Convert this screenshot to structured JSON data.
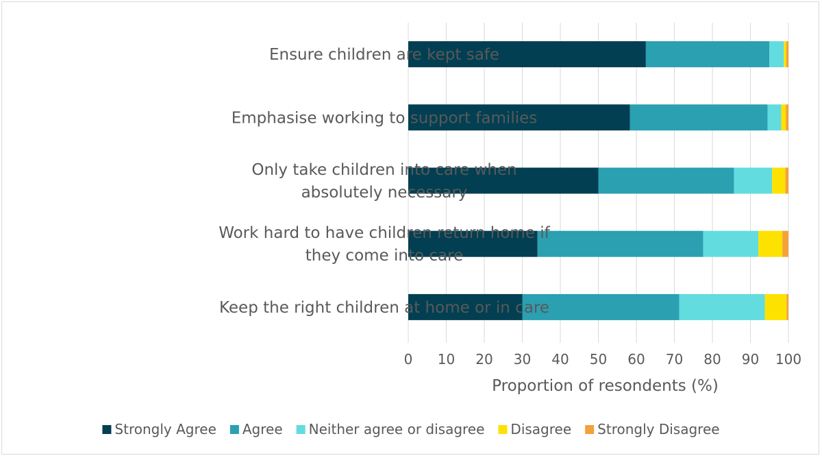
{
  "chart_data": {
    "type": "bar",
    "orientation": "horizontal",
    "stacked": true,
    "categories": [
      [
        "Ensure children are kept safe"
      ],
      [
        "Emphasise working to support families"
      ],
      [
        "Only take children into care when",
        "absolutely necessary"
      ],
      [
        "Work hard to have children return home if",
        "they come into care"
      ],
      [
        "Keep the right children at home or in care"
      ]
    ],
    "series": [
      {
        "name": "Strongly Agree",
        "color": "#023f52",
        "values": [
          62.5,
          58.3,
          50.0,
          34.0,
          30.0
        ]
      },
      {
        "name": "Agree",
        "color": "#2aa0b1",
        "values": [
          32.5,
          36.2,
          35.7,
          43.6,
          41.3
        ]
      },
      {
        "name": "Neither agree or disagree",
        "color": "#62dcdf",
        "values": [
          3.8,
          3.6,
          10.0,
          14.5,
          22.5
        ]
      },
      {
        "name": "Disagree",
        "color": "#fde200",
        "values": [
          0.6,
          1.2,
          3.5,
          6.3,
          5.7
        ]
      },
      {
        "name": "Strongly Disagree",
        "color": "#f4a13a",
        "values": [
          0.6,
          0.7,
          0.8,
          1.6,
          0.5
        ]
      }
    ],
    "xlabel": "Proportion of resondents (%)",
    "ylabel": "",
    "xlim": [
      0,
      100
    ],
    "xticks": [
      "0",
      "10",
      "20",
      "30",
      "40",
      "50",
      "60",
      "70",
      "80",
      "90",
      "100"
    ],
    "grid": "vertical",
    "legend_position": "bottom"
  }
}
